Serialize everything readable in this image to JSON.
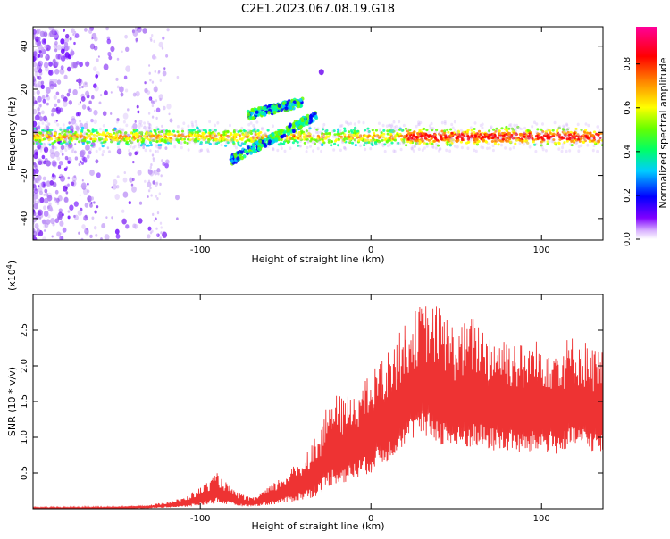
{
  "title": "C2E1.2023.067.08.19.G18",
  "chart_data": [
    {
      "type": "heatmap",
      "xlabel": "Height of straight line (km)",
      "ylabel": "Frequency (Hz)",
      "xlim": [
        -198,
        136
      ],
      "ylim": [
        -50,
        49
      ],
      "x_ticks": [
        -100,
        0,
        100
      ],
      "y_ticks": [
        -40,
        -20,
        0,
        20,
        40
      ],
      "colorbar": {
        "label": "Normalized spectral amplitude",
        "range": [
          0,
          0.97
        ],
        "ticks": [
          0.0,
          0.2,
          0.4,
          0.6,
          0.8
        ]
      },
      "features": [
        {
          "kind": "main-band",
          "x_start": -198,
          "x_end": 136,
          "y_center": -2,
          "y_halfwidth": 3
        },
        {
          "kind": "upper-branch",
          "x_start": -72,
          "x_end": -40,
          "y_start": 8,
          "y_end": 14
        },
        {
          "kind": "lower-branch",
          "x_start": -82,
          "x_end": -32,
          "y_start": -13,
          "y_end": 8
        },
        {
          "kind": "hotspot",
          "x": -29,
          "y": 28
        }
      ]
    },
    {
      "type": "line",
      "xlabel": "Height of straight line (km)",
      "ylabel": "SNR (10 * v/v)",
      "multiplier": "(x10^4)",
      "multiplier_text": "(x10",
      "multiplier_exp": "4",
      "xlim": [
        -198,
        136
      ],
      "ylim": [
        0,
        3.0
      ],
      "x_ticks": [
        -100,
        0,
        100
      ],
      "y_ticks": [
        0.5,
        1.0,
        1.5,
        2.0,
        2.5
      ],
      "series": [
        {
          "color": "#ee3333",
          "envelope_x": [
            -198,
            -150,
            -130,
            -110,
            -100,
            -90,
            -80,
            -70,
            -60,
            -50,
            -40,
            -35,
            -30,
            -25,
            -20,
            -15,
            -10,
            -5,
            0,
            5,
            10,
            20,
            30,
            40,
            50,
            60,
            70,
            80,
            90,
            100,
            110,
            120,
            130,
            136
          ],
          "envelope_y": [
            0.02,
            0.03,
            0.05,
            0.15,
            0.3,
            0.5,
            0.25,
            0.15,
            0.3,
            0.5,
            0.7,
            0.95,
            1.1,
            1.5,
            1.6,
            1.55,
            1.7,
            1.75,
            1.9,
            2.1,
            2.2,
            2.6,
            2.9,
            2.85,
            2.55,
            2.7,
            2.5,
            2.45,
            2.3,
            2.4,
            2.35,
            2.45,
            2.3,
            2.2
          ],
          "baseline_y": [
            0.0,
            0.0,
            0.01,
            0.02,
            0.04,
            0.08,
            0.04,
            0.03,
            0.05,
            0.08,
            0.12,
            0.15,
            0.2,
            0.3,
            0.35,
            0.35,
            0.4,
            0.45,
            0.5,
            0.6,
            0.65,
            0.9,
            1.0,
            0.9,
            0.8,
            0.85,
            0.8,
            0.8,
            0.75,
            0.8,
            0.75,
            0.85,
            0.8,
            0.75
          ]
        }
      ]
    }
  ]
}
